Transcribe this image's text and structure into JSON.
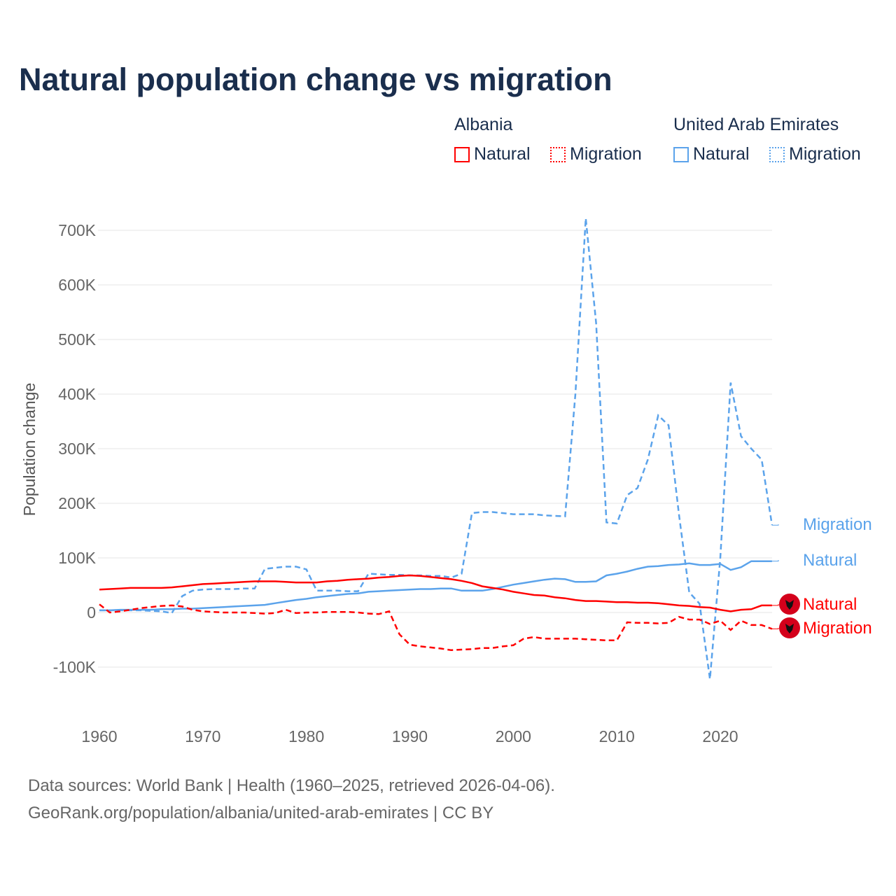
{
  "title": "Natural population change vs migration",
  "legend": {
    "groups": [
      {
        "name": "Albania",
        "items": [
          {
            "label": "Natural",
            "style": "solid",
            "color": "#ff0000"
          },
          {
            "label": "Migration",
            "style": "dotted",
            "color": "#ff0000"
          }
        ]
      },
      {
        "name": "United Arab Emirates",
        "items": [
          {
            "label": "Natural",
            "style": "solid",
            "color": "#5ba3eb"
          },
          {
            "label": "Migration",
            "style": "dotted",
            "color": "#5ba3eb"
          }
        ]
      }
    ]
  },
  "source": {
    "line1": "Data sources: World Bank | Health (1960–2025, retrieved 2026-04-06).",
    "line2": "GeoRank.org/population/albania/united-arab-emirates | CC BY"
  },
  "chart_data": {
    "type": "line",
    "title": "Natural population change vs migration",
    "xlabel": "",
    "ylabel": "Population change",
    "xlim": [
      1960,
      2025
    ],
    "ylim": [
      -150000,
      750000
    ],
    "xticks": [
      1960,
      1970,
      1980,
      1990,
      2000,
      2010,
      2020
    ],
    "yticks": [
      -100000,
      0,
      100000,
      200000,
      300000,
      400000,
      500000,
      600000,
      700000
    ],
    "ytick_labels": [
      "-100K",
      "0",
      "100K",
      "200K",
      "300K",
      "400K",
      "500K",
      "600K",
      "700K"
    ],
    "x_start": 1960,
    "series": [
      {
        "name": "United Arab Emirates Migration",
        "label": "Migration",
        "color": "#5ba3eb",
        "dash": true,
        "values_k": [
          4,
          4,
          4,
          4,
          4,
          3,
          2,
          -1,
          30,
          40,
          42,
          43,
          43,
          43,
          44,
          44,
          80,
          82,
          84,
          84,
          79,
          40,
          40,
          40,
          39,
          39,
          71,
          70,
          69,
          69,
          68,
          68,
          67,
          67,
          64,
          71,
          182,
          184,
          184,
          182,
          180,
          180,
          180,
          178,
          177,
          176,
          400,
          722,
          530,
          165,
          163,
          215,
          228,
          280,
          361,
          343,
          180,
          37,
          16,
          -122,
          100,
          421,
          323,
          300,
          280,
          160
        ]
      },
      {
        "name": "United Arab Emirates Natural",
        "label": "Natural",
        "color": "#5ba3eb",
        "dash": false,
        "values_k": [
          4,
          4,
          5,
          5,
          5,
          5,
          6,
          6,
          7,
          7,
          8,
          9,
          10,
          11,
          12,
          13,
          14,
          17,
          20,
          23,
          25,
          28,
          30,
          32,
          34,
          35,
          38,
          39,
          40,
          41,
          42,
          43,
          43,
          44,
          44,
          40,
          40,
          40,
          43,
          47,
          51,
          54,
          57,
          60,
          62,
          61,
          56,
          56,
          57,
          68,
          71,
          75,
          80,
          84,
          85,
          87,
          88,
          90,
          87,
          87,
          89,
          78,
          83,
          94,
          94,
          94
        ]
      },
      {
        "name": "Albania Natural",
        "label": "Natural",
        "color": "#ff0000",
        "dash": false,
        "values_k": [
          42,
          43,
          44,
          45,
          45,
          45,
          45,
          46,
          48,
          50,
          52,
          53,
          54,
          55,
          56,
          57,
          57,
          57,
          56,
          55,
          55,
          55,
          57,
          58,
          60,
          61,
          62,
          64,
          65,
          67,
          68,
          67,
          65,
          63,
          61,
          58,
          54,
          48,
          45,
          42,
          38,
          35,
          32,
          31,
          28,
          26,
          23,
          21,
          21,
          20,
          19,
          19,
          18,
          18,
          17,
          15,
          13,
          12,
          10,
          9,
          5,
          2,
          5,
          6,
          13,
          13
        ]
      },
      {
        "name": "Albania Migration",
        "label": "Migration",
        "color": "#ff0000",
        "dash": true,
        "values_k": [
          15,
          0,
          2,
          5,
          8,
          10,
          12,
          13,
          11,
          5,
          2,
          1,
          0,
          0,
          0,
          -1,
          -2,
          -1,
          5,
          -1,
          0,
          0,
          1,
          1,
          1,
          0,
          -2,
          -3,
          2,
          -40,
          -59,
          -62,
          -64,
          -66,
          -69,
          -68,
          -67,
          -65,
          -65,
          -62,
          -60,
          -48,
          -45,
          -48,
          -48,
          -48,
          -48,
          -49,
          -50,
          -51,
          -51,
          -18,
          -19,
          -19,
          -20,
          -19,
          -8,
          -13,
          -13,
          -21,
          -15,
          -32,
          -15,
          -23,
          -23,
          -30
        ]
      }
    ]
  }
}
